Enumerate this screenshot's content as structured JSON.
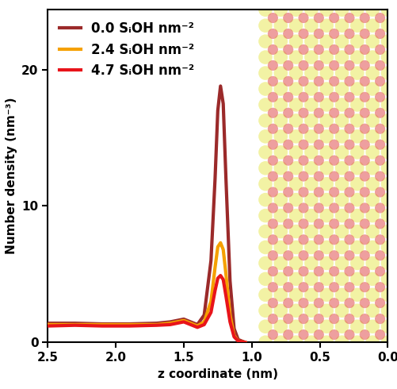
{
  "chart_data": {
    "type": "line",
    "x_label": "z coordinate (nm)",
    "y_label": "Number density (nm⁻³)",
    "x": [
      2.5,
      2.3,
      2.1,
      1.9,
      1.7,
      1.6,
      1.5,
      1.45,
      1.4,
      1.35,
      1.3,
      1.27,
      1.25,
      1.23,
      1.21,
      1.19,
      1.16,
      1.13,
      1.1,
      1.05
    ],
    "series": [
      {
        "name": "0.0 SᵢOH nm⁻²",
        "color": "#9b2a2a",
        "values": [
          1.4,
          1.4,
          1.35,
          1.35,
          1.4,
          1.5,
          1.7,
          1.5,
          1.3,
          2.0,
          6.0,
          12.0,
          17.0,
          18.8,
          17.5,
          12.0,
          4.5,
          1.0,
          0.2,
          0.0
        ]
      },
      {
        "name": "2.4 SᵢOH nm⁻²",
        "color": "#f5a000",
        "values": [
          1.3,
          1.3,
          1.3,
          1.3,
          1.3,
          1.4,
          1.6,
          1.4,
          1.2,
          1.5,
          3.0,
          5.5,
          7.0,
          7.3,
          6.8,
          5.0,
          2.0,
          0.5,
          0.1,
          0.0
        ]
      },
      {
        "name": "4.7 SᵢOH nm⁻²",
        "color": "#e8141a",
        "values": [
          1.2,
          1.25,
          1.2,
          1.2,
          1.25,
          1.3,
          1.5,
          1.3,
          1.1,
          1.3,
          2.2,
          3.8,
          4.7,
          4.9,
          4.6,
          3.4,
          1.5,
          0.4,
          0.1,
          0.0
        ]
      }
    ],
    "xlim": [
      2.5,
      0.0
    ],
    "xticks": [
      2.5,
      {
        "value": 2,
        "label": "2.0"
      },
      1.5,
      {
        "value": 1,
        "label": "1.0"
      },
      0.5,
      {
        "value": 0,
        "label": "0.0"
      }
    ],
    "ylim": [
      0,
      24.4
    ],
    "yticks": [
      0,
      10,
      20
    ],
    "legend": "upper left"
  }
}
